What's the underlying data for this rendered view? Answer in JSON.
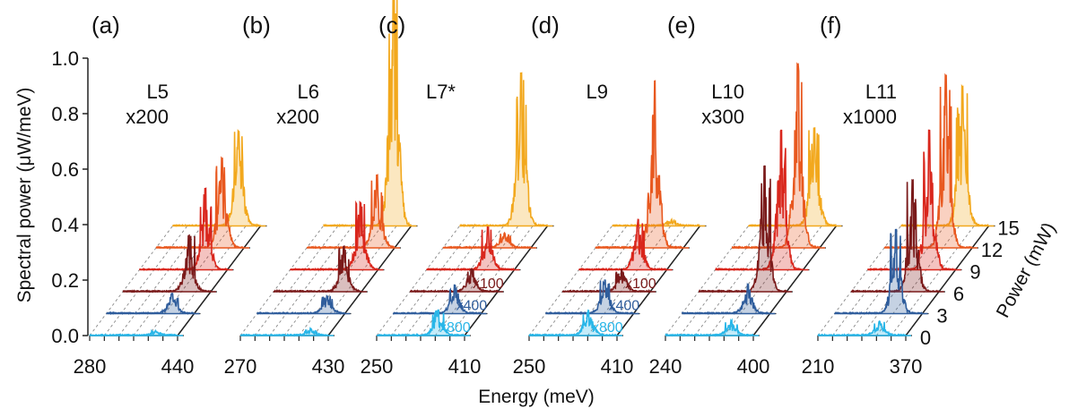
{
  "chart_data": {
    "type": "line",
    "title": "",
    "xlabel": "Energy (meV)",
    "ylabel": "Spectral power (μW/meV)",
    "zlabel": "Power (mW)",
    "ylim": [
      0.0,
      1.0
    ],
    "y_ticks": [
      "0.0",
      "0.2",
      "0.4",
      "0.6",
      "0.8",
      "1.0"
    ],
    "z_ticks": [
      "0",
      "3",
      "6",
      "9",
      "12",
      "15"
    ],
    "power_levels_mW": [
      0,
      3,
      6,
      9,
      12,
      15
    ],
    "series_colors": [
      "#29b6e8",
      "#2f5d9c",
      "#7a1a1a",
      "#d9261c",
      "#e8581f",
      "#f2a81d"
    ],
    "panels": [
      {
        "letter": "(a)",
        "label": "L5",
        "label2": "x200",
        "xlim": [
          280,
          440
        ],
        "x_ticks": [
          "280",
          "440"
        ],
        "peak_energy": 400,
        "heights": [
          0.015,
          0.07,
          0.2,
          0.29,
          0.32,
          0.34
        ],
        "scale_labels": [
          "",
          "",
          "",
          "",
          "",
          ""
        ]
      },
      {
        "letter": "(b)",
        "label": "L6",
        "label2": "x200",
        "xlim": [
          270,
          430
        ],
        "x_ticks": [
          "270",
          "430"
        ],
        "peak_energy": 398,
        "heights": [
          0.02,
          0.06,
          0.16,
          0.24,
          0.26,
          0.92
        ],
        "scale_labels": [
          "",
          "",
          "",
          "",
          "",
          ""
        ]
      },
      {
        "letter": "(c)",
        "label": "L7*",
        "label2": "",
        "xlim": [
          250,
          410
        ],
        "x_ticks": [
          "250",
          "410"
        ],
        "peak_energy": 362,
        "heights": [
          0.09,
          0.1,
          0.08,
          0.15,
          0.05,
          0.55
        ],
        "scale_labels": [
          "x800",
          "x400",
          "x100",
          "",
          "",
          ""
        ]
      },
      {
        "letter": "(d)",
        "label": "L9",
        "label2": "",
        "xlim": [
          250,
          410
        ],
        "x_ticks": [
          "250",
          "410"
        ],
        "peak_energy": 358,
        "heights": [
          0.09,
          0.12,
          0.08,
          0.18,
          0.6,
          0.02
        ],
        "scale_labels": [
          "x800",
          "x400",
          "x100",
          "",
          "",
          ""
        ]
      },
      {
        "letter": "(e)",
        "label": "L10",
        "label2": "x300",
        "xlim": [
          240,
          400
        ],
        "x_ticks": [
          "240",
          "400"
        ],
        "peak_energy": 360,
        "heights": [
          0.05,
          0.1,
          0.45,
          0.5,
          0.66,
          0.35
        ],
        "scale_labels": [
          "",
          "",
          "",
          "",
          "",
          ""
        ]
      },
      {
        "letter": "(f)",
        "label": "L11",
        "label2": "x1000",
        "xlim": [
          210,
          370
        ],
        "x_ticks": [
          "210",
          "370"
        ],
        "peak_energy": 322,
        "heights": [
          0.05,
          0.3,
          0.4,
          0.5,
          0.62,
          0.5
        ],
        "scale_labels": [
          "",
          "",
          "",
          "",
          "",
          ""
        ]
      }
    ]
  }
}
